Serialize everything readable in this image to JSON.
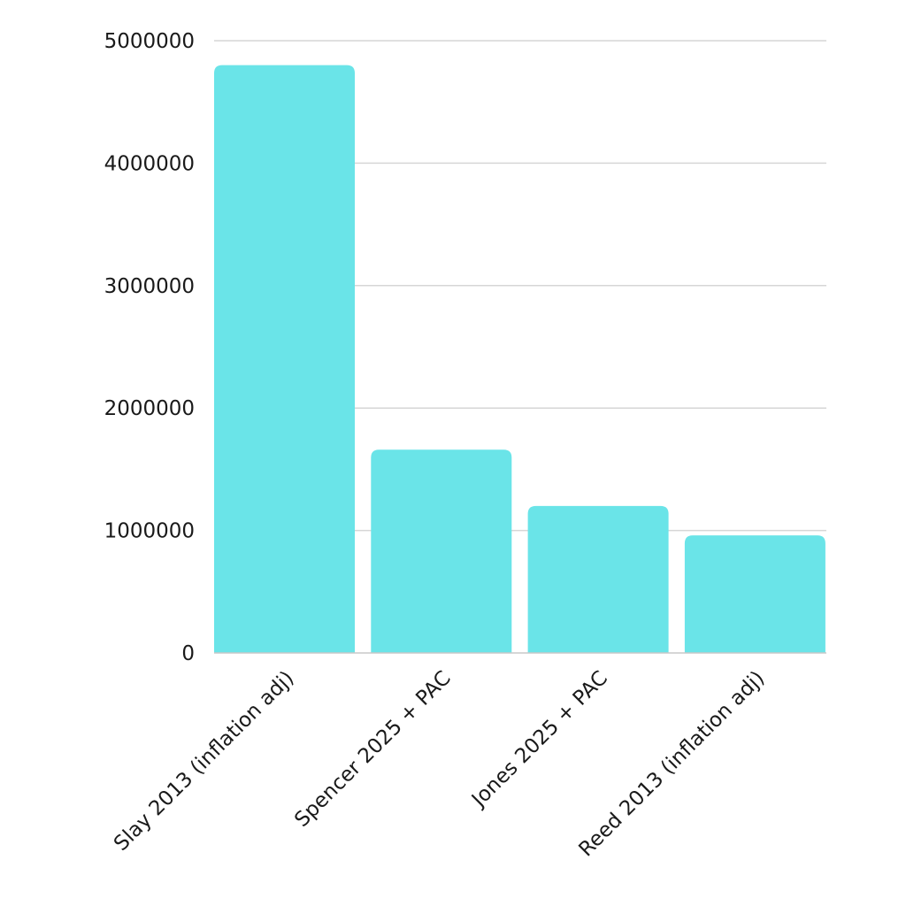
{
  "chart_data": {
    "type": "bar",
    "title": "",
    "xlabel": "",
    "ylabel": "",
    "categories": [
      "Slay 2013 (inflation adj)",
      "Spencer 2025 + PAC",
      "Jones 2025 + PAC",
      "Reed 2013 (inflation adj)"
    ],
    "values": [
      4800000,
      1660000,
      1200000,
      960000
    ],
    "ylim": [
      0,
      5000000
    ],
    "yticks": [
      0,
      1000000,
      2000000,
      3000000,
      4000000,
      5000000
    ],
    "ytick_labels": [
      "0",
      "1000000",
      "2000000",
      "3000000",
      "4000000",
      "5000000"
    ],
    "grid": true,
    "legend": "none",
    "bar_color": "#6ae4e8"
  }
}
